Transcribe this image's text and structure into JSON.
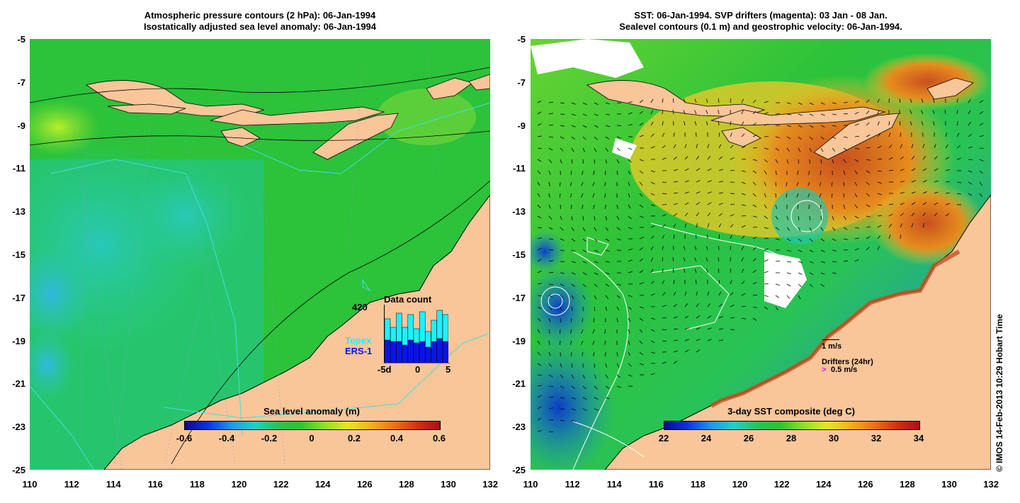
{
  "left_panel": {
    "title_line1": "Atmospheric pressure contours (2 hPa): 06-Jan-1994",
    "title_line2": "Isostatically adjusted sea level anomaly: 06-Jan-1994",
    "colorbar_title": "Sea level anomaly (m)",
    "colorbar_ticks": [
      "-0.6",
      "-0.4",
      "-0.2",
      "0",
      "0.2",
      "0.4",
      "0.6"
    ],
    "inset": {
      "title": "Data count",
      "max_label": "420",
      "legend_topex": "Topex",
      "legend_ers1": "ERS-1",
      "x_labels": [
        "-5d",
        "0",
        "5"
      ],
      "topex_color": "#1ff0ff",
      "ers1_color": "#0a14e6"
    }
  },
  "right_panel": {
    "title_line1": "SST: 06-Jan-1994. SVP drifters (magenta): 03 Jan - 08 Jan.",
    "title_line2": "Sealevel contours (0.1 m) and geostrophic velocity: 06-Jan-1994.",
    "colorbar_title": "3-day SST composite (deg C)",
    "colorbar_ticks": [
      "22",
      "24",
      "26",
      "28",
      "30",
      "32",
      "34"
    ],
    "legend_velocity": "1 m/s",
    "legend_drifters": "Drifters (24hr)",
    "legend_drifter_speed": "0.5 m/s",
    "drifter_color": "#ff00ff"
  },
  "y_ticks": [
    "-5",
    "-7",
    "-9",
    "-11",
    "-13",
    "-15",
    "-17",
    "-19",
    "-21",
    "-23",
    "-25"
  ],
  "x_ticks": [
    "110",
    "112",
    "114",
    "116",
    "118",
    "120",
    "122",
    "124",
    "126",
    "128",
    "130",
    "132"
  ],
  "copyright": "© IMOS 14-Feb-2013 10:29 Hobart Time",
  "colors": {
    "land": "#f8c699",
    "sea_mid": "#22c43a",
    "sea_low": "#23cfa8",
    "sea_warm": "#e68c1e"
  }
}
